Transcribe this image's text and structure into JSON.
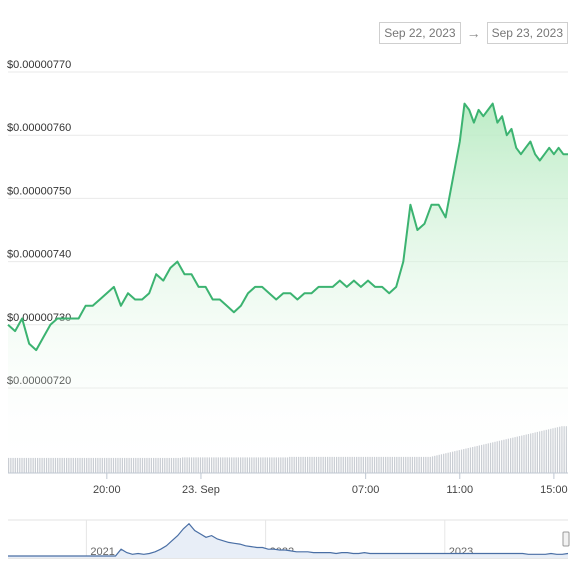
{
  "range_selector": {
    "from": "Sep 22, 2023",
    "arrow": "→",
    "to": "Sep 23, 2023"
  },
  "colors": {
    "line": "#3cb371",
    "area_top": "#b9ebc3",
    "volume": "#c8ccd2",
    "navigator_line": "#4a6fa5",
    "grid": "#e9e9e9"
  },
  "chart_data": {
    "type": "line",
    "title": "",
    "xlabel": "",
    "ylabel": "",
    "ylim": [
      7.2e-06,
      7.7e-06
    ],
    "y_ticks": [
      "$0.00000770",
      "$0.00000760",
      "$0.00000750",
      "$0.00000740",
      "$0.00000730",
      "$0.00000720"
    ],
    "y_tick_values": [
      7.7e-06,
      7.6e-06,
      7.5e-06,
      7.4e-06,
      7.3e-06,
      7.2e-06
    ],
    "x_ticks": [
      "20:00",
      "23. Sep",
      "07:00",
      "11:00",
      "15:00"
    ],
    "x_tick_hours": [
      20,
      24,
      31,
      35,
      39
    ],
    "x_range_hours": [
      15.8,
      39.6
    ],
    "grid": true,
    "price_series": {
      "x_hours": [
        15.8,
        16.1,
        16.4,
        16.7,
        17.0,
        17.3,
        17.6,
        17.9,
        18.2,
        18.5,
        18.8,
        19.1,
        19.4,
        19.7,
        20.0,
        20.3,
        20.6,
        20.9,
        21.2,
        21.5,
        21.8,
        22.1,
        22.4,
        22.7,
        23.0,
        23.3,
        23.6,
        23.9,
        24.2,
        24.5,
        24.8,
        25.1,
        25.4,
        25.7,
        26.0,
        26.3,
        26.6,
        26.9,
        27.2,
        27.5,
        27.8,
        28.1,
        28.4,
        28.7,
        29.0,
        29.3,
        29.6,
        29.9,
        30.2,
        30.5,
        30.8,
        31.1,
        31.4,
        31.7,
        32.0,
        32.3,
        32.6,
        32.9,
        33.2,
        33.5,
        33.8,
        34.1,
        34.4,
        34.7,
        35.0,
        35.2,
        35.4,
        35.6,
        35.8,
        36.0,
        36.2,
        36.4,
        36.6,
        36.8,
        37.0,
        37.2,
        37.4,
        37.6,
        37.8,
        38.0,
        38.2,
        38.4,
        38.6,
        38.8,
        39.0,
        39.2,
        39.4,
        39.6
      ],
      "values": [
        7.3e-06,
        7.29e-06,
        7.31e-06,
        7.27e-06,
        7.26e-06,
        7.28e-06,
        7.3e-06,
        7.31e-06,
        7.31e-06,
        7.31e-06,
        7.31e-06,
        7.33e-06,
        7.33e-06,
        7.34e-06,
        7.35e-06,
        7.36e-06,
        7.33e-06,
        7.35e-06,
        7.34e-06,
        7.34e-06,
        7.35e-06,
        7.38e-06,
        7.37e-06,
        7.39e-06,
        7.4e-06,
        7.38e-06,
        7.38e-06,
        7.36e-06,
        7.36e-06,
        7.34e-06,
        7.34e-06,
        7.33e-06,
        7.32e-06,
        7.33e-06,
        7.35e-06,
        7.36e-06,
        7.36e-06,
        7.35e-06,
        7.34e-06,
        7.35e-06,
        7.35e-06,
        7.34e-06,
        7.35e-06,
        7.35e-06,
        7.36e-06,
        7.36e-06,
        7.36e-06,
        7.37e-06,
        7.36e-06,
        7.37e-06,
        7.36e-06,
        7.37e-06,
        7.36e-06,
        7.36e-06,
        7.35e-06,
        7.36e-06,
        7.4e-06,
        7.49e-06,
        7.45e-06,
        7.46e-06,
        7.49e-06,
        7.49e-06,
        7.47e-06,
        7.53e-06,
        7.59e-06,
        7.65e-06,
        7.64e-06,
        7.62e-06,
        7.64e-06,
        7.63e-06,
        7.64e-06,
        7.65e-06,
        7.62e-06,
        7.63e-06,
        7.6e-06,
        7.61e-06,
        7.58e-06,
        7.57e-06,
        7.58e-06,
        7.59e-06,
        7.57e-06,
        7.56e-06,
        7.57e-06,
        7.58e-06,
        7.57e-06,
        7.58e-06,
        7.57e-06,
        7.57e-06
      ]
    },
    "volume_series": {
      "values": [
        29,
        29,
        29,
        29,
        29,
        29,
        29,
        29,
        29,
        29,
        29,
        29,
        29,
        29,
        29,
        29,
        29,
        29,
        29,
        29,
        29,
        29,
        29,
        29,
        29,
        29,
        29,
        29,
        29,
        29,
        29,
        29,
        29,
        29,
        29,
        29,
        29,
        29,
        29,
        29,
        29,
        29,
        29,
        29,
        29,
        29,
        29,
        29,
        29,
        29,
        29,
        29,
        29,
        29,
        29,
        29,
        29,
        29,
        29,
        29,
        29,
        29,
        29,
        29,
        29,
        29,
        29,
        29,
        29,
        29,
        29,
        29,
        29,
        29,
        29,
        29,
        29,
        29,
        30,
        30,
        30,
        30,
        30,
        30,
        30,
        30,
        30,
        30,
        30,
        30,
        30,
        30,
        30,
        30,
        30,
        30,
        30,
        30,
        30,
        30,
        30,
        30,
        30,
        30,
        30,
        30,
        30,
        30,
        30,
        30,
        30,
        30,
        30,
        30,
        30,
        30,
        30,
        30,
        30,
        30,
        30,
        30,
        30,
        30,
        30,
        30,
        31,
        31,
        31,
        31,
        31,
        31,
        31,
        31,
        31,
        31,
        31,
        31,
        31,
        31,
        31,
        31,
        31,
        31,
        31,
        31,
        31,
        31,
        31,
        31,
        31,
        31,
        31,
        31,
        31,
        31,
        31,
        31,
        31,
        31,
        31,
        31,
        31,
        31,
        31,
        31,
        31,
        31,
        31,
        31,
        31,
        31,
        31,
        31,
        31,
        31,
        31,
        31,
        31,
        31,
        31,
        31,
        31,
        31,
        31,
        31,
        31,
        31,
        31,
        31,
        32,
        33,
        34,
        35,
        36,
        37,
        38,
        39,
        40,
        41,
        42,
        43,
        44,
        45,
        46,
        47,
        48,
        49,
        50,
        51,
        52,
        53,
        54,
        55,
        56,
        57,
        58,
        59,
        60,
        61,
        62,
        63,
        64,
        65,
        66,
        67,
        68,
        69,
        70,
        71,
        72,
        73,
        74,
        75,
        76,
        77,
        78,
        79,
        80,
        81,
        82,
        83,
        84,
        85,
        86,
        87,
        88,
        89,
        90,
        90,
        90
      ]
    },
    "navigator": {
      "labels": [
        "2021",
        "2022",
        "2023"
      ],
      "label_positions": [
        0.14,
        0.46,
        0.78
      ],
      "values": [
        0,
        0,
        0,
        0,
        0,
        0,
        0,
        0,
        0,
        0,
        0,
        0,
        0,
        0,
        0,
        0,
        0,
        0,
        0,
        0,
        8,
        4,
        2,
        3,
        2,
        3,
        5,
        8,
        12,
        18,
        24,
        32,
        38,
        30,
        26,
        22,
        24,
        20,
        18,
        16,
        15,
        14,
        12,
        11,
        10,
        10,
        8,
        8,
        7,
        7,
        6,
        5,
        5,
        5,
        4,
        4,
        4,
        4,
        3,
        4,
        4,
        3,
        3,
        4,
        3,
        3,
        3,
        3,
        3,
        3,
        3,
        3,
        3,
        3,
        3,
        3,
        3,
        3,
        3,
        3,
        3,
        3,
        3,
        3,
        3,
        3,
        3,
        3,
        3,
        3,
        3,
        3,
        2,
        2,
        2,
        2,
        3,
        2,
        2,
        3
      ],
      "ylim": [
        0,
        40
      ]
    }
  }
}
